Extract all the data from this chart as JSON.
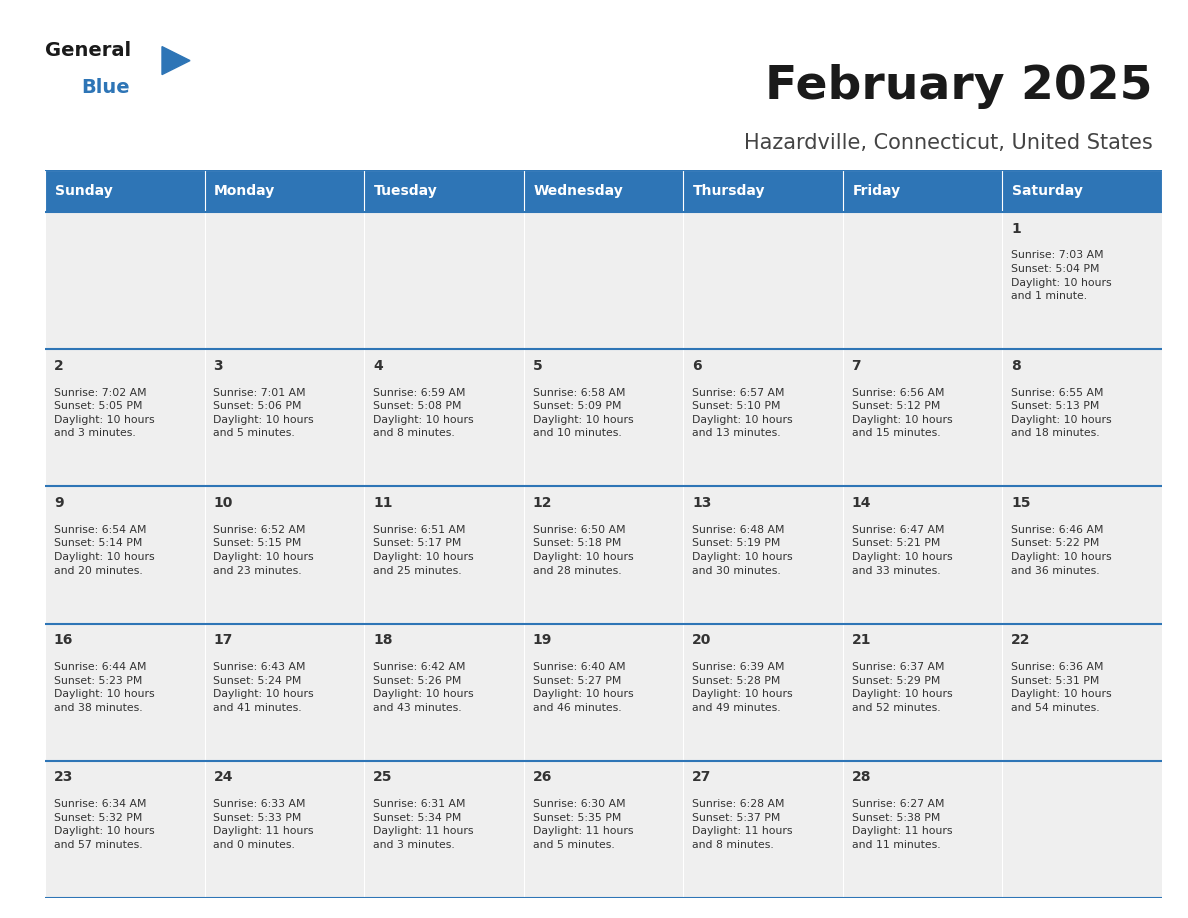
{
  "title": "February 2025",
  "subtitle": "Hazardville, Connecticut, United States",
  "header_color": "#2E75B6",
  "header_text_color": "#FFFFFF",
  "cell_bg_color": "#EFEFEF",
  "border_color": "#2E75B6",
  "text_color": "#333333",
  "days_of_week": [
    "Sunday",
    "Monday",
    "Tuesday",
    "Wednesday",
    "Thursday",
    "Friday",
    "Saturday"
  ],
  "calendar_data": [
    [
      null,
      null,
      null,
      null,
      null,
      null,
      {
        "day": "1",
        "sunrise": "7:03 AM",
        "sunset": "5:04 PM",
        "daylight": "10 hours\nand 1 minute."
      }
    ],
    [
      {
        "day": "2",
        "sunrise": "7:02 AM",
        "sunset": "5:05 PM",
        "daylight": "10 hours\nand 3 minutes."
      },
      {
        "day": "3",
        "sunrise": "7:01 AM",
        "sunset": "5:06 PM",
        "daylight": "10 hours\nand 5 minutes."
      },
      {
        "day": "4",
        "sunrise": "6:59 AM",
        "sunset": "5:08 PM",
        "daylight": "10 hours\nand 8 minutes."
      },
      {
        "day": "5",
        "sunrise": "6:58 AM",
        "sunset": "5:09 PM",
        "daylight": "10 hours\nand 10 minutes."
      },
      {
        "day": "6",
        "sunrise": "6:57 AM",
        "sunset": "5:10 PM",
        "daylight": "10 hours\nand 13 minutes."
      },
      {
        "day": "7",
        "sunrise": "6:56 AM",
        "sunset": "5:12 PM",
        "daylight": "10 hours\nand 15 minutes."
      },
      {
        "day": "8",
        "sunrise": "6:55 AM",
        "sunset": "5:13 PM",
        "daylight": "10 hours\nand 18 minutes."
      }
    ],
    [
      {
        "day": "9",
        "sunrise": "6:54 AM",
        "sunset": "5:14 PM",
        "daylight": "10 hours\nand 20 minutes."
      },
      {
        "day": "10",
        "sunrise": "6:52 AM",
        "sunset": "5:15 PM",
        "daylight": "10 hours\nand 23 minutes."
      },
      {
        "day": "11",
        "sunrise": "6:51 AM",
        "sunset": "5:17 PM",
        "daylight": "10 hours\nand 25 minutes."
      },
      {
        "day": "12",
        "sunrise": "6:50 AM",
        "sunset": "5:18 PM",
        "daylight": "10 hours\nand 28 minutes."
      },
      {
        "day": "13",
        "sunrise": "6:48 AM",
        "sunset": "5:19 PM",
        "daylight": "10 hours\nand 30 minutes."
      },
      {
        "day": "14",
        "sunrise": "6:47 AM",
        "sunset": "5:21 PM",
        "daylight": "10 hours\nand 33 minutes."
      },
      {
        "day": "15",
        "sunrise": "6:46 AM",
        "sunset": "5:22 PM",
        "daylight": "10 hours\nand 36 minutes."
      }
    ],
    [
      {
        "day": "16",
        "sunrise": "6:44 AM",
        "sunset": "5:23 PM",
        "daylight": "10 hours\nand 38 minutes."
      },
      {
        "day": "17",
        "sunrise": "6:43 AM",
        "sunset": "5:24 PM",
        "daylight": "10 hours\nand 41 minutes."
      },
      {
        "day": "18",
        "sunrise": "6:42 AM",
        "sunset": "5:26 PM",
        "daylight": "10 hours\nand 43 minutes."
      },
      {
        "day": "19",
        "sunrise": "6:40 AM",
        "sunset": "5:27 PM",
        "daylight": "10 hours\nand 46 minutes."
      },
      {
        "day": "20",
        "sunrise": "6:39 AM",
        "sunset": "5:28 PM",
        "daylight": "10 hours\nand 49 minutes."
      },
      {
        "day": "21",
        "sunrise": "6:37 AM",
        "sunset": "5:29 PM",
        "daylight": "10 hours\nand 52 minutes."
      },
      {
        "day": "22",
        "sunrise": "6:36 AM",
        "sunset": "5:31 PM",
        "daylight": "10 hours\nand 54 minutes."
      }
    ],
    [
      {
        "day": "23",
        "sunrise": "6:34 AM",
        "sunset": "5:32 PM",
        "daylight": "10 hours\nand 57 minutes."
      },
      {
        "day": "24",
        "sunrise": "6:33 AM",
        "sunset": "5:33 PM",
        "daylight": "11 hours\nand 0 minutes."
      },
      {
        "day": "25",
        "sunrise": "6:31 AM",
        "sunset": "5:34 PM",
        "daylight": "11 hours\nand 3 minutes."
      },
      {
        "day": "26",
        "sunrise": "6:30 AM",
        "sunset": "5:35 PM",
        "daylight": "11 hours\nand 5 minutes."
      },
      {
        "day": "27",
        "sunrise": "6:28 AM",
        "sunset": "5:37 PM",
        "daylight": "11 hours\nand 8 minutes."
      },
      {
        "day": "28",
        "sunrise": "6:27 AM",
        "sunset": "5:38 PM",
        "daylight": "11 hours\nand 11 minutes."
      },
      null
    ]
  ]
}
